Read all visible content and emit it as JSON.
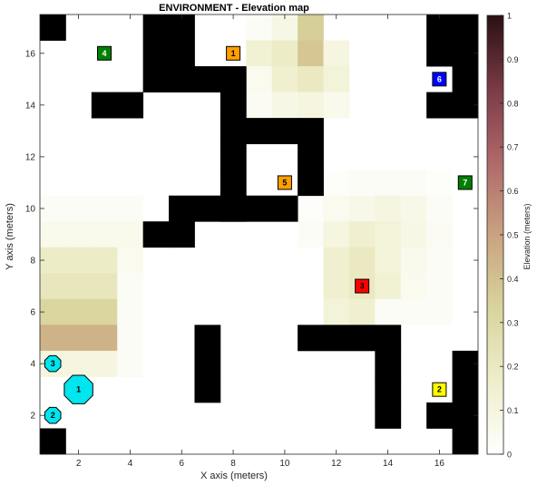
{
  "chart_data": {
    "type": "heatmap",
    "title": "ENVIRONMENT - Elevation map",
    "xlabel": "X axis (meters)",
    "ylabel": "Y axis (meters)",
    "colorbar_label": "Elevation (meters)",
    "xlim": [
      0.5,
      17.5
    ],
    "ylim": [
      0.5,
      17.5
    ],
    "clim": [
      0,
      1
    ],
    "x_ticks": [
      2,
      4,
      6,
      8,
      10,
      12,
      14,
      16
    ],
    "y_ticks": [
      2,
      4,
      6,
      8,
      10,
      12,
      14,
      16
    ],
    "colorbar_ticks": [
      0,
      0.1,
      0.2,
      0.3,
      0.4,
      0.5,
      0.6,
      0.7,
      0.8,
      0.9,
      1
    ],
    "obstacle_color": "#000000",
    "colormap": [
      "#ffffff",
      "#eeeecb",
      "#d9d49c",
      "#c9a37f",
      "#b0686a",
      "#7a3a46",
      "#2a1012"
    ],
    "obstacles": [
      [
        1,
        1
      ],
      [
        1,
        17
      ],
      [
        5,
        15
      ],
      [
        5,
        16
      ],
      [
        5,
        17
      ],
      [
        6,
        15
      ],
      [
        6,
        16
      ],
      [
        6,
        17
      ],
      [
        7,
        15
      ],
      [
        8,
        15
      ],
      [
        3,
        14
      ],
      [
        4,
        14
      ],
      [
        8,
        10
      ],
      [
        8,
        11
      ],
      [
        8,
        12
      ],
      [
        8,
        13
      ],
      [
        8,
        14
      ],
      [
        9,
        13
      ],
      [
        10,
        13
      ],
      [
        11,
        13
      ],
      [
        11,
        12
      ],
      [
        11,
        11
      ],
      [
        5,
        9
      ],
      [
        6,
        9
      ],
      [
        6,
        10
      ],
      [
        7,
        10
      ],
      [
        8,
        10
      ],
      [
        9,
        10
      ],
      [
        10,
        10
      ],
      [
        7,
        3
      ],
      [
        7,
        4
      ],
      [
        7,
        5
      ],
      [
        11,
        5
      ],
      [
        12,
        5
      ],
      [
        13,
        5
      ],
      [
        14,
        5
      ],
      [
        14,
        4
      ],
      [
        14,
        3
      ],
      [
        14,
        2
      ],
      [
        16,
        2
      ],
      [
        17,
        1
      ],
      [
        17,
        2
      ],
      [
        17,
        3
      ],
      [
        17,
        4
      ],
      [
        16,
        14
      ],
      [
        17,
        14
      ],
      [
        17,
        15
      ],
      [
        17,
        16
      ],
      [
        17,
        17
      ],
      [
        16,
        16
      ],
      [
        16,
        17
      ]
    ],
    "elevation": [
      [
        9,
        17,
        0.03
      ],
      [
        10,
        17,
        0.08
      ],
      [
        11,
        17,
        0.35
      ],
      [
        9,
        16,
        0.14
      ],
      [
        10,
        16,
        0.18
      ],
      [
        11,
        16,
        0.38
      ],
      [
        12,
        16,
        0.1
      ],
      [
        9,
        15,
        0.05
      ],
      [
        10,
        15,
        0.15
      ],
      [
        11,
        15,
        0.2
      ],
      [
        12,
        15,
        0.12
      ],
      [
        9,
        14,
        0.04
      ],
      [
        10,
        14,
        0.08
      ],
      [
        11,
        14,
        0.1
      ],
      [
        12,
        14,
        0.06
      ],
      [
        1,
        10,
        0.03
      ],
      [
        2,
        10,
        0.03
      ],
      [
        3,
        10,
        0.03
      ],
      [
        4,
        10,
        0.03
      ],
      [
        1,
        9,
        0.06
      ],
      [
        2,
        9,
        0.06
      ],
      [
        3,
        9,
        0.06
      ],
      [
        4,
        9,
        0.06
      ],
      [
        1,
        8,
        0.18
      ],
      [
        2,
        8,
        0.18
      ],
      [
        3,
        8,
        0.18
      ],
      [
        4,
        8,
        0.05
      ],
      [
        1,
        7,
        0.22
      ],
      [
        2,
        7,
        0.22
      ],
      [
        3,
        7,
        0.22
      ],
      [
        4,
        7,
        0.03
      ],
      [
        1,
        6,
        0.32
      ],
      [
        2,
        6,
        0.32
      ],
      [
        3,
        6,
        0.32
      ],
      [
        4,
        6,
        0.03
      ],
      [
        1,
        5,
        0.45
      ],
      [
        2,
        5,
        0.45
      ],
      [
        3,
        5,
        0.45
      ],
      [
        4,
        5,
        0.03
      ],
      [
        1,
        4,
        0.1
      ],
      [
        2,
        4,
        0.1
      ],
      [
        3,
        4,
        0.1
      ],
      [
        4,
        4,
        0.03
      ],
      [
        12,
        11,
        0.02
      ],
      [
        13,
        11,
        0.03
      ],
      [
        14,
        11,
        0.03
      ],
      [
        15,
        11,
        0.03
      ],
      [
        16,
        11,
        0.02
      ],
      [
        11,
        10,
        0.02
      ],
      [
        12,
        10,
        0.05
      ],
      [
        13,
        10,
        0.07
      ],
      [
        14,
        10,
        0.1
      ],
      [
        15,
        10,
        0.07
      ],
      [
        16,
        10,
        0.03
      ],
      [
        11,
        9,
        0.03
      ],
      [
        12,
        9,
        0.1
      ],
      [
        13,
        9,
        0.15
      ],
      [
        14,
        9,
        0.12
      ],
      [
        15,
        9,
        0.08
      ],
      [
        16,
        9,
        0.04
      ],
      [
        12,
        8,
        0.15
      ],
      [
        13,
        8,
        0.2
      ],
      [
        14,
        8,
        0.12
      ],
      [
        15,
        8,
        0.06
      ],
      [
        16,
        8,
        0.03
      ],
      [
        12,
        7,
        0.15
      ],
      [
        13,
        7,
        0.2
      ],
      [
        14,
        7,
        0.14
      ],
      [
        15,
        7,
        0.05
      ],
      [
        16,
        7,
        0.03
      ],
      [
        12,
        6,
        0.12
      ],
      [
        13,
        6,
        0.15
      ],
      [
        14,
        6,
        0.03
      ],
      [
        15,
        6,
        0.03
      ],
      [
        16,
        6,
        0.03
      ]
    ],
    "square_markers": [
      {
        "label": "4",
        "x": 3,
        "y": 16,
        "color": "#007f00",
        "text_color": "#ffffff"
      },
      {
        "label": "1",
        "x": 8,
        "y": 16,
        "color": "#ff9f00",
        "text_color": "#000000"
      },
      {
        "label": "6",
        "x": 16,
        "y": 15,
        "color": "#0000ff",
        "text_color": "#ffffff"
      },
      {
        "label": "5",
        "x": 10,
        "y": 11,
        "color": "#ff9f00",
        "text_color": "#000000"
      },
      {
        "label": "7",
        "x": 17,
        "y": 11,
        "color": "#007f00",
        "text_color": "#ffffff"
      },
      {
        "label": "3",
        "x": 13,
        "y": 7,
        "color": "#ff0000",
        "text_color": "#000000"
      },
      {
        "label": "2",
        "x": 16,
        "y": 3,
        "color": "#ffff00",
        "text_color": "#000000"
      }
    ],
    "octagon_markers": [
      {
        "label": "3",
        "x": 1,
        "y": 4,
        "size": "small",
        "color": "#00e5ee"
      },
      {
        "label": "1",
        "x": 2,
        "y": 3,
        "size": "large",
        "color": "#00e5ee"
      },
      {
        "label": "2",
        "x": 1,
        "y": 2,
        "size": "small",
        "color": "#00e5ee"
      }
    ]
  }
}
